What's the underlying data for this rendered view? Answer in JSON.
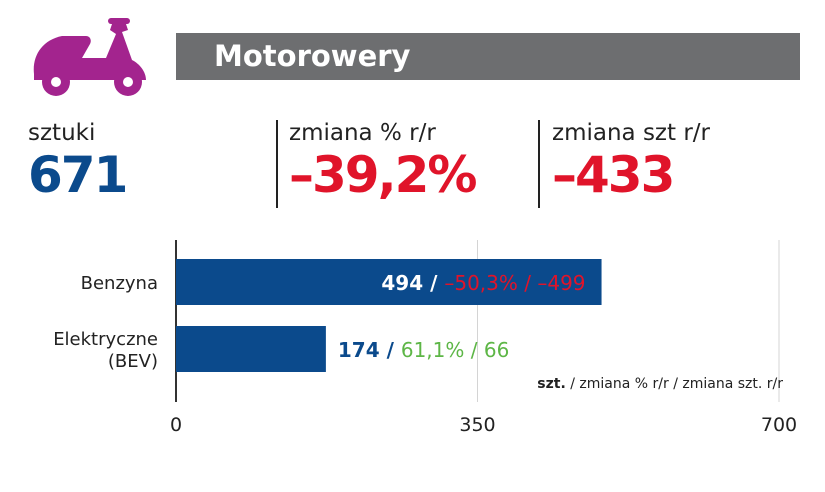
{
  "header": {
    "title": "Motorowery",
    "icon": "scooter-icon",
    "icon_color": "#a3248e"
  },
  "stats": [
    {
      "label": "sztuki",
      "value": "671",
      "color": "#0b4a8c"
    },
    {
      "label": "zmiana % r/r",
      "value": "–39,2%",
      "color": "#e0142a"
    },
    {
      "label": "zmiana szt r/r",
      "value": "–433",
      "color": "#e0142a"
    }
  ],
  "chart_data": {
    "type": "bar",
    "orientation": "horizontal",
    "categories": [
      "Benzyna",
      "Elektryczne (BEV)"
    ],
    "category_lines": [
      [
        "Benzyna"
      ],
      [
        "Elektryczne",
        "(BEV)"
      ]
    ],
    "values": [
      494,
      174
    ],
    "labels": [
      {
        "value_text": "494 /",
        "change_text": "–50,3% / –499",
        "change_color": "#e0142a",
        "value_color": "#ffffff"
      },
      {
        "value_text": "174 /",
        "change_text": "61,1% / 66",
        "change_color": "#5db646",
        "value_color": "#0b4a8c"
      }
    ],
    "xlim": [
      0,
      700
    ],
    "xticks": [
      0,
      350,
      700
    ],
    "tick_labels": [
      "0",
      "350",
      "700"
    ],
    "grid": true,
    "bar_color": "#0b4a8c",
    "legend_bold": "szt.",
    "legend_rest": " / zmiana % r/r / zmiana szt. r/r"
  }
}
